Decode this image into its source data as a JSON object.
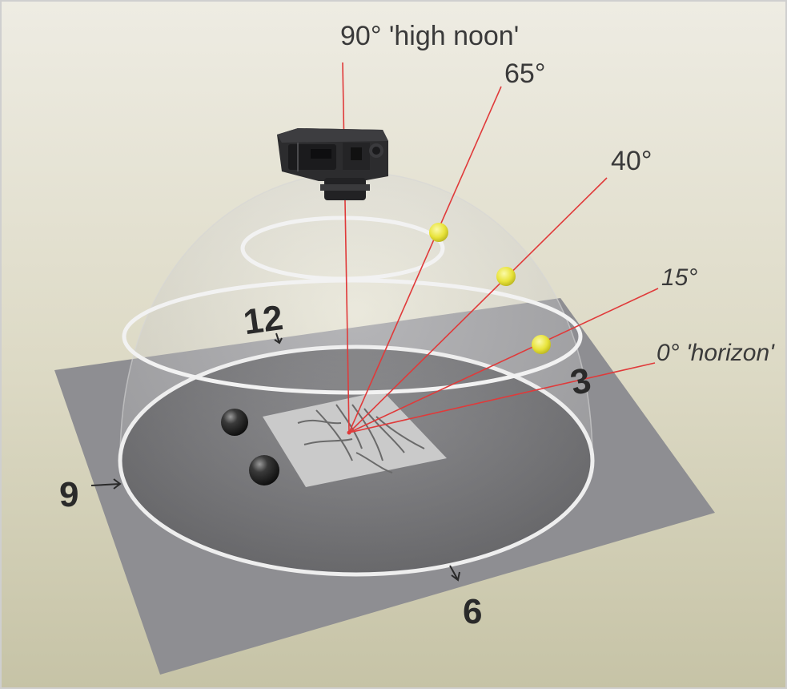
{
  "labels": {
    "high_noon": "90° 'high noon'",
    "deg65": "65°",
    "deg40": "40°",
    "deg15": "15°",
    "horizon": "0° 'horizon'"
  },
  "clock": {
    "twelve": "12",
    "three": "3",
    "six": "6",
    "nine": "9"
  },
  "colors": {
    "background_top": "#eae8dc",
    "background_bottom": "#c9c6aa",
    "base_plate": "#8f8f93",
    "floor_disc": "#505054",
    "dome": "#ffffff",
    "ring": "#f5f5f5",
    "ray": "#e03a3a",
    "light_point": "#e6e23a",
    "sample": "#c8c8c8",
    "camera": "#2b2b2d"
  },
  "icons": {
    "camera": "camera-icon",
    "light": "light-point-icon",
    "sphere": "reference-sphere-icon"
  }
}
